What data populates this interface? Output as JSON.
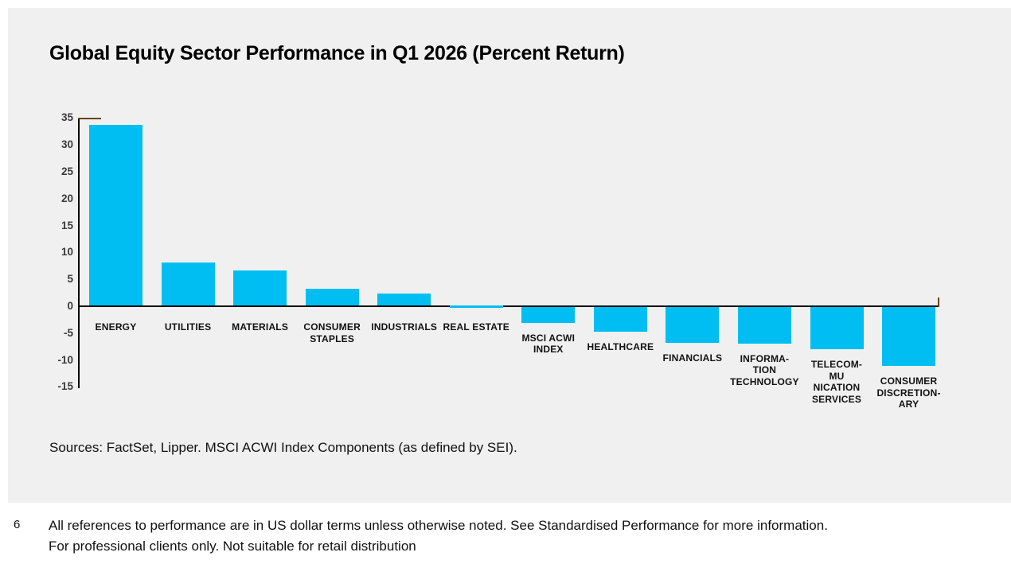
{
  "page": {
    "sources": "Sources: FactSet, Lipper. MSCI ACWI Index Components (as defined by SEI).",
    "footnote_number": "6",
    "footnote_line1": "All references to performance are in US dollar terms unless otherwise noted. See Standardised Performance for more information.",
    "footnote_line2": "For professional clients only. Not suitable for retail distribution"
  },
  "colors": {
    "page_bg": "#ffffff",
    "panel_bg": "#f0f0f0",
    "bar": "#00bef2",
    "axis": "#000000",
    "axis_cap": "#654300",
    "tick_text": "#3a3a3a",
    "label_text": "#111111"
  },
  "chart_data": {
    "type": "bar",
    "title": "Global Equity Sector Performance in Q1 2026 (Percent Return)",
    "categories": [
      "ENERGY",
      "UTILITIES",
      "MATERIALS",
      "CONSUMER STAPLES",
      "INDUSTRIALS",
      "REAL ESTATE",
      "MSCI ACWI INDEX",
      "HEALTHCARE",
      "FINANCIALS",
      "INFORMATION TECHNOLOGY",
      "TELECOMMUNICATION SERVICES",
      "CONSUMER DISCRETIONARY"
    ],
    "label_lines": [
      [
        "ENERGY"
      ],
      [
        "UTILITIES"
      ],
      [
        "MATERIALS"
      ],
      [
        "CONSUMER",
        "STAPLES"
      ],
      [
        "INDUSTRIALS"
      ],
      [
        "REAL ESTATE"
      ],
      [
        "MSCI ACWI",
        "INDEX"
      ],
      [
        "HEALTHCARE"
      ],
      [
        "FINANCIALS"
      ],
      [
        "INFORMA-",
        "TION",
        "TECHNOLOGY"
      ],
      [
        "TELECOM-",
        "MU",
        "NICATION",
        "SERVICES"
      ],
      [
        "CONSUMER",
        "DISCRETION-",
        "ARY"
      ]
    ],
    "values": [
      33.8,
      8.2,
      6.7,
      3.3,
      2.4,
      -0.2,
      -3.1,
      -4.7,
      -6.8,
      -6.9,
      -8.0,
      -11.1
    ],
    "xlabel": "",
    "ylabel": "",
    "ylim": [
      -15,
      35
    ],
    "yticks": [
      35,
      30,
      25,
      20,
      15,
      10,
      5,
      0,
      -5,
      -10,
      -15
    ],
    "grid": false,
    "legend": null,
    "bar_color": "#00bef2"
  }
}
